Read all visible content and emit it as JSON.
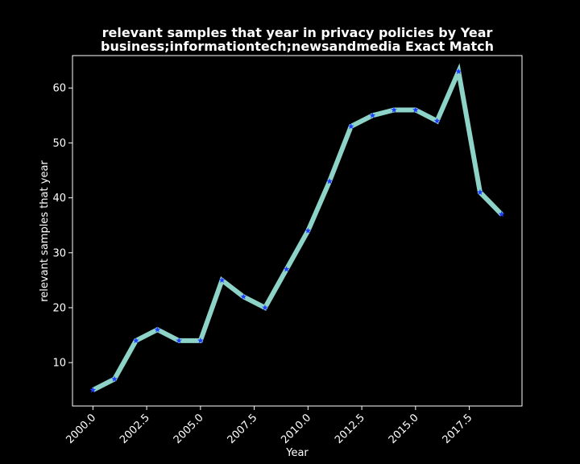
{
  "chart_data": {
    "type": "line",
    "title": "relevant samples that year in privacy policies by Year",
    "subtitle": "business;informationtech;newsandmedia Exact Match",
    "xlabel": "Year",
    "ylabel": "relevant samples that year",
    "x": [
      2000,
      2001,
      2002,
      2003,
      2004,
      2005,
      2006,
      2007,
      2008,
      2009,
      2010,
      2011,
      2012,
      2013,
      2014,
      2015,
      2016,
      2017,
      2018,
      2019
    ],
    "series": [
      {
        "values": [
          5,
          7,
          14,
          16,
          14,
          14,
          25,
          22,
          20,
          27,
          34,
          43,
          53,
          55,
          56,
          56,
          54,
          63,
          41,
          37
        ],
        "line_color": "#8dd3c7",
        "marker_color": "#1f3cff",
        "marker": "star"
      }
    ],
    "xlim": [
      1999.05,
      2019.95
    ],
    "ylim": [
      2.1,
      65.9
    ],
    "xticks": [
      "2000.0",
      "2002.5",
      "2005.0",
      "2007.5",
      "2010.0",
      "2012.5",
      "2015.0",
      "2017.5"
    ],
    "yticks": [
      "10",
      "20",
      "30",
      "40",
      "50",
      "60"
    ],
    "grid": false,
    "background": "#000000",
    "text_color": "#ffffff"
  }
}
